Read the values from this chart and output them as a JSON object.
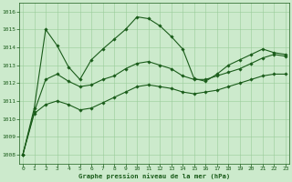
{
  "s1_y": [
    1008.0,
    1010.6,
    1015.0,
    1014.1,
    1012.9,
    1012.2,
    1013.3,
    1013.9,
    1014.45,
    1015.0,
    1015.7,
    1015.6,
    1015.2,
    1014.6,
    1013.9,
    1012.25,
    1012.1,
    1012.5,
    1013.0,
    1013.3,
    1013.6,
    1013.9,
    1013.7,
    1013.6
  ],
  "s2_y": [
    1008.0,
    1010.3,
    1010.8,
    1011.0,
    1010.8,
    1010.5,
    1010.6,
    1010.9,
    1011.2,
    1011.5,
    1011.8,
    1011.9,
    1011.8,
    1011.7,
    1011.5,
    1011.4,
    1011.5,
    1011.6,
    1011.8,
    1012.0,
    1012.2,
    1012.4,
    1012.5,
    1012.5
  ],
  "s3_y": [
    1008.0,
    1010.4,
    1012.2,
    1012.5,
    1012.1,
    1011.8,
    1011.9,
    1012.2,
    1012.4,
    1012.8,
    1013.1,
    1013.2,
    1013.0,
    1012.8,
    1012.4,
    1012.2,
    1012.2,
    1012.4,
    1012.6,
    1012.8,
    1013.1,
    1013.4,
    1013.6,
    1013.5
  ],
  "x": [
    0,
    1,
    2,
    3,
    4,
    5,
    6,
    7,
    8,
    9,
    10,
    11,
    12,
    13,
    14,
    15,
    16,
    17,
    18,
    19,
    20,
    21,
    22,
    23
  ],
  "xlim": [
    -0.3,
    23.3
  ],
  "ylim": [
    1007.5,
    1016.5
  ],
  "yticks": [
    1008,
    1009,
    1010,
    1011,
    1012,
    1013,
    1014,
    1015,
    1016
  ],
  "xticks": [
    0,
    1,
    2,
    3,
    4,
    5,
    6,
    7,
    8,
    9,
    10,
    11,
    12,
    13,
    14,
    15,
    16,
    17,
    18,
    19,
    20,
    21,
    22,
    23
  ],
  "xlabel": "Graphe pression niveau de la mer (hPa)",
  "bg_color": "#cceacc",
  "grid_color": "#99cc99",
  "line_color": "#1a5c1a",
  "text_color": "#1a5c1a"
}
